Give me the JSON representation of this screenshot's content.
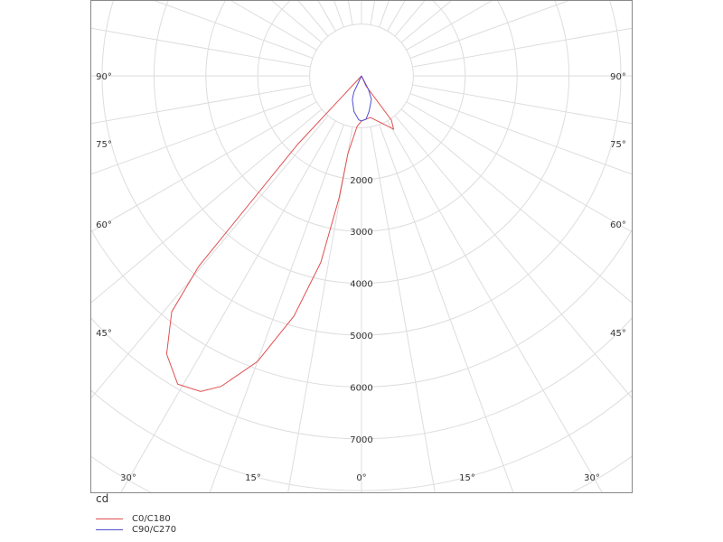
{
  "chart_data": {
    "type": "polar",
    "unit_label": "cd",
    "radial_ticks": [
      2000,
      3000,
      4000,
      5000,
      6000,
      7000
    ],
    "radial_grid_step": 1000,
    "angle_grid_step_deg": 10,
    "angle_labels_side": [
      {
        "label": "90°",
        "deg": 90
      },
      {
        "label": "75°",
        "deg": 75
      },
      {
        "label": "60°",
        "deg": 60
      },
      {
        "label": "45°",
        "deg": 45
      }
    ],
    "angle_labels_bottom": [
      {
        "label": "30°",
        "deg": -30
      },
      {
        "label": "15°",
        "deg": -15
      },
      {
        "label": "0°",
        "deg": 0
      },
      {
        "label": "15°",
        "deg": 15
      },
      {
        "label": "30°",
        "deg": 30
      }
    ],
    "grid": true,
    "legend_position": "bottom-left",
    "series": [
      {
        "name": "C0/C180",
        "color": "#e05050",
        "points": [
          [
            0,
            0
          ],
          [
            -43,
            1800
          ],
          [
            -40.5,
            4830
          ],
          [
            -38.8,
            5840
          ],
          [
            -35,
            6550
          ],
          [
            -30.8,
            6920
          ],
          [
            -27,
            6830
          ],
          [
            -24.3,
            6570
          ],
          [
            -20,
            5860
          ],
          [
            -15.7,
            4810
          ],
          [
            -12.3,
            3680
          ],
          [
            -10.4,
            2400
          ],
          [
            -9.9,
            1520
          ],
          [
            -5,
            980
          ],
          [
            0,
            870
          ],
          [
            12,
            820
          ],
          [
            31,
            1200
          ],
          [
            34,
            1030
          ],
          [
            24,
            210
          ],
          [
            0,
            0
          ]
        ]
      },
      {
        "name": "C90/C270",
        "color": "#5050d0",
        "points": [
          [
            0,
            0
          ],
          [
            -25,
            350
          ],
          [
            -21,
            490
          ],
          [
            -12,
            700
          ],
          [
            -3.5,
            850
          ],
          [
            0,
            870
          ],
          [
            6,
            840
          ],
          [
            12,
            700
          ],
          [
            23,
            490
          ],
          [
            27,
            300
          ],
          [
            0,
            0
          ]
        ]
      }
    ]
  }
}
